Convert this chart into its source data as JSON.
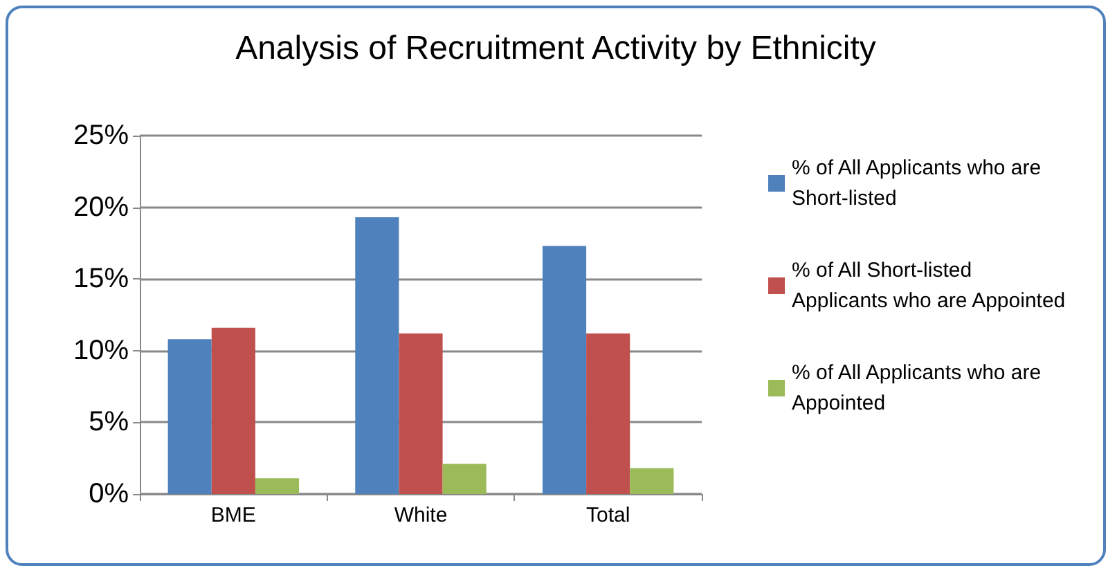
{
  "chart_data": {
    "type": "bar",
    "title": "Analysis of Recruitment Activity by Ethnicity",
    "categories": [
      "BME",
      "White",
      "Total"
    ],
    "series": [
      {
        "name": "% of All Applicants who are Short-listed",
        "color": "#4f81bd",
        "values": [
          10.8,
          19.3,
          17.3
        ]
      },
      {
        "name": "% of All Short-listed Applicants who are Appointed",
        "color": "#c0504d",
        "values": [
          11.6,
          11.2,
          11.2
        ]
      },
      {
        "name": "% of All Applicants who are Appointed",
        "color": "#9bbb59",
        "values": [
          1.1,
          2.1,
          1.8
        ]
      }
    ],
    "ylim": [
      0,
      25
    ],
    "yticks": [
      {
        "value": 0,
        "label": "0%"
      },
      {
        "value": 5,
        "label": "5%"
      },
      {
        "value": 10,
        "label": "10%"
      },
      {
        "value": 15,
        "label": "15%"
      },
      {
        "value": 20,
        "label": "20%"
      },
      {
        "value": 25,
        "label": "25%"
      }
    ],
    "grid": "y",
    "legend": "right"
  }
}
